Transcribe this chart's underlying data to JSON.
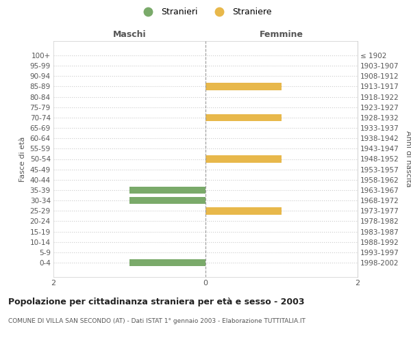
{
  "age_groups": [
    "100+",
    "95-99",
    "90-94",
    "85-89",
    "80-84",
    "75-79",
    "70-74",
    "65-69",
    "60-64",
    "55-59",
    "50-54",
    "45-49",
    "40-44",
    "35-39",
    "30-34",
    "25-29",
    "20-24",
    "15-19",
    "10-14",
    "5-9",
    "0-4"
  ],
  "birth_years": [
    "≤ 1902",
    "1903-1907",
    "1908-1912",
    "1913-1917",
    "1918-1922",
    "1923-1927",
    "1928-1932",
    "1933-1937",
    "1938-1942",
    "1943-1947",
    "1948-1952",
    "1953-1957",
    "1958-1962",
    "1963-1967",
    "1968-1972",
    "1973-1977",
    "1978-1982",
    "1983-1987",
    "1988-1992",
    "1993-1997",
    "1998-2002"
  ],
  "maschi": [
    0,
    0,
    0,
    0,
    0,
    0,
    0,
    0,
    0,
    0,
    0,
    0,
    0,
    -1,
    -1,
    0,
    0,
    0,
    0,
    0,
    -1
  ],
  "femmine": [
    0,
    0,
    0,
    1,
    0,
    0,
    1,
    0,
    0,
    0,
    1,
    0,
    0,
    0,
    0,
    1,
    0,
    0,
    0,
    0,
    0
  ],
  "color_maschi": "#7aaa6a",
  "color_femmine": "#e8b84b",
  "xlim": [
    -2,
    2
  ],
  "title": "Popolazione per cittadinanza straniera per età e sesso - 2003",
  "subtitle": "COMUNE DI VILLA SAN SECONDO (AT) - Dati ISTAT 1° gennaio 2003 - Elaborazione TUTTITALIA.IT",
  "ylabel_left": "Fasce di età",
  "ylabel_right": "Anni di nascita",
  "legend_stranieri": "Stranieri",
  "legend_straniere": "Straniere",
  "header_left": "Maschi",
  "header_right": "Femmine",
  "background_color": "#ffffff",
  "grid_color": "#cccccc",
  "vline_color": "#999999"
}
